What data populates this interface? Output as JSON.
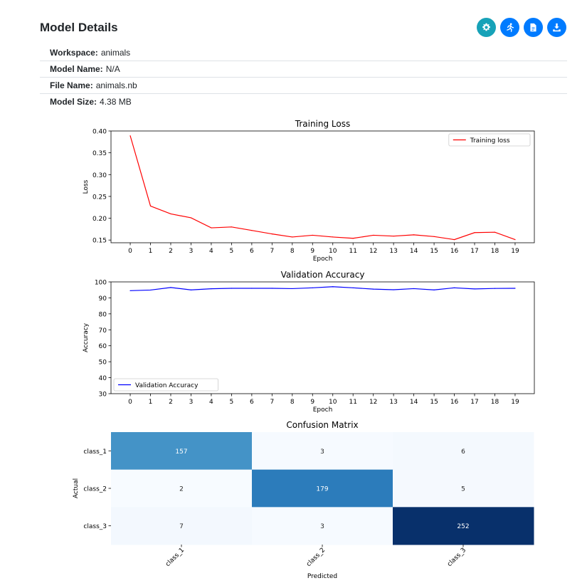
{
  "page": {
    "title": "Model Details",
    "buttons": [
      {
        "name": "settings-button",
        "icon": "gear-icon",
        "color": "#17a2b8"
      },
      {
        "name": "run-button",
        "icon": "running-icon",
        "color": "#007bff"
      },
      {
        "name": "report-button",
        "icon": "document-icon",
        "color": "#007bff"
      },
      {
        "name": "download-button",
        "icon": "download-icon",
        "color": "#007bff"
      }
    ]
  },
  "info": {
    "workspace_label": "Workspace:",
    "workspace": "animals",
    "model_name_label": "Model Name:",
    "model_name": "N/A",
    "file_name_label": "File Name:",
    "file_name": "animals.nb",
    "model_size_label": "Model Size:",
    "model_size": "4.38 MB"
  },
  "chart_data": [
    {
      "type": "line",
      "title": "Training Loss",
      "xlabel": "Epoch",
      "ylabel": "Loss",
      "x": [
        0,
        1,
        2,
        3,
        4,
        5,
        6,
        7,
        8,
        9,
        10,
        11,
        12,
        13,
        14,
        15,
        16,
        17,
        18,
        19
      ],
      "xlim": [
        -0.95,
        19.95
      ],
      "ylim": [
        0.1438,
        0.4
      ],
      "yticks": [
        0.15,
        0.2,
        0.25,
        0.3,
        0.35,
        0.4
      ],
      "ytick_labels": [
        "0.15",
        "0.20",
        "0.25",
        "0.30",
        "0.35",
        "0.40"
      ],
      "grid": false,
      "legend": "upper-right",
      "series": [
        {
          "name": "Training loss",
          "color": "#ff0000",
          "values": [
            0.389,
            0.228,
            0.21,
            0.201,
            0.178,
            0.18,
            0.172,
            0.164,
            0.157,
            0.161,
            0.157,
            0.154,
            0.161,
            0.159,
            0.162,
            0.158,
            0.151,
            0.167,
            0.168,
            0.151
          ]
        }
      ]
    },
    {
      "type": "line",
      "title": "Validation Accuracy",
      "xlabel": "Epoch",
      "ylabel": "Accuracy",
      "x": [
        0,
        1,
        2,
        3,
        4,
        5,
        6,
        7,
        8,
        9,
        10,
        11,
        12,
        13,
        14,
        15,
        16,
        17,
        18,
        19
      ],
      "xlim": [
        -0.95,
        19.95
      ],
      "ylim": [
        30,
        100
      ],
      "yticks": [
        30,
        40,
        50,
        60,
        70,
        80,
        90,
        100
      ],
      "ytick_labels": [
        "30",
        "40",
        "50",
        "60",
        "70",
        "80",
        "90",
        "100"
      ],
      "grid": false,
      "legend": "lower-left",
      "series": [
        {
          "name": "Validation Accuracy",
          "color": "#0000ff",
          "values": [
            94.5,
            94.9,
            96.5,
            95.0,
            95.7,
            96.0,
            96.0,
            96.0,
            95.8,
            96.3,
            97.0,
            96.3,
            95.5,
            95.1,
            95.8,
            95.0,
            96.3,
            95.6,
            95.9,
            96.0
          ]
        }
      ]
    },
    {
      "type": "heatmap",
      "title": "Confusion Matrix",
      "xlabel": "Predicted",
      "ylabel": "Actual",
      "rows": [
        "class_1",
        "class_2",
        "class_3"
      ],
      "columns": [
        "class_1",
        "class_2",
        "class_3"
      ],
      "values": [
        [
          157,
          3,
          6
        ],
        [
          2,
          179,
          5
        ],
        [
          7,
          3,
          252
        ]
      ],
      "colormap": "Blues"
    }
  ]
}
